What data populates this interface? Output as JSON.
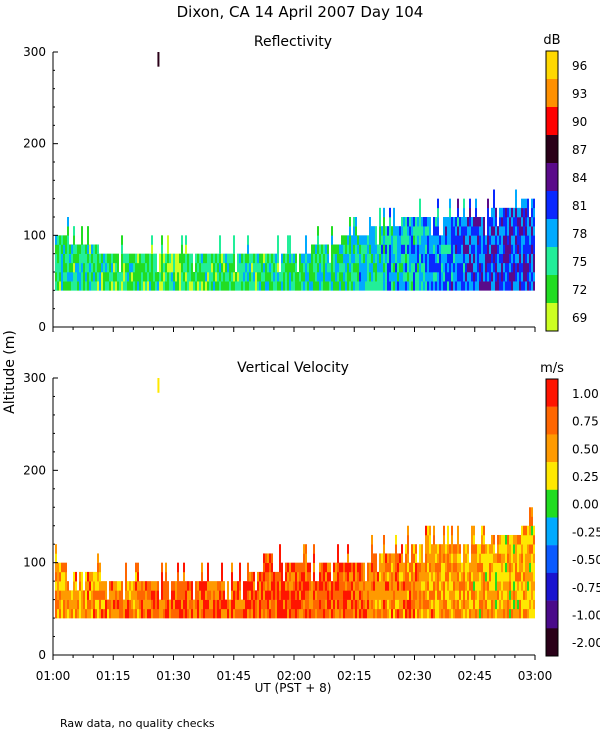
{
  "title": "Dixon, CA 14 April 2007  Day 104",
  "ylabel": "Altitude (m)",
  "xlabel": "UT  (PST + 8)",
  "footnote": "Raw data, no quality checks",
  "chart_data": [
    {
      "type": "heatmap",
      "title": "Reflectivity",
      "colorbar_unit": "dB",
      "x_range": [
        "01:00",
        "03:00"
      ],
      "ylim": [
        0,
        300
      ],
      "yticks": [
        0,
        100,
        200,
        300
      ],
      "colorbar_ticks": [
        "96",
        "93",
        "90",
        "87",
        "84",
        "81",
        "78",
        "75",
        "72",
        "69"
      ],
      "colorbar_colors": [
        "#ffd800",
        "#ff9000",
        "#ff0000",
        "#2a0018",
        "#5a0a8a",
        "#0a28ff",
        "#00aaff",
        "#22ee99",
        "#22dd22",
        "#ccff22"
      ],
      "echo_base_altitude_m": 40,
      "echo_top_profile": [
        {
          "t": "01:00",
          "top_m": 100
        },
        {
          "t": "01:15",
          "top_m": 80
        },
        {
          "t": "01:30",
          "top_m": 80
        },
        {
          "t": "01:45",
          "top_m": 80
        },
        {
          "t": "02:00",
          "top_m": 80
        },
        {
          "t": "02:15",
          "top_m": 100
        },
        {
          "t": "02:30",
          "top_m": 120
        },
        {
          "t": "02:45",
          "top_m": 120
        },
        {
          "t": "03:00",
          "top_m": 140
        }
      ],
      "dominant_values_dB": [
        {
          "t": "01:00",
          "dB": 74
        },
        {
          "t": "01:30",
          "dB": 73
        },
        {
          "t": "02:00",
          "dB": 74
        },
        {
          "t": "02:30",
          "dB": 77
        },
        {
          "t": "02:45",
          "dB": 81
        },
        {
          "t": "03:00",
          "dB": 81
        }
      ]
    },
    {
      "type": "heatmap",
      "title": "Vertical Velocity",
      "colorbar_unit": "m/s",
      "x_range": [
        "01:00",
        "03:00"
      ],
      "ylim": [
        0,
        300
      ],
      "yticks": [
        0,
        100,
        200,
        300
      ],
      "colorbar_ticks": [
        "1.00",
        "0.75",
        "0.50",
        "0.25",
        "0.00",
        "-0.25",
        "-0.50",
        "-0.75",
        "-1.00",
        "-2.00"
      ],
      "colorbar_colors": [
        "#ff1400",
        "#ff6600",
        "#ff9a00",
        "#ffe800",
        "#20dd20",
        "#00aaff",
        "#0a5aff",
        "#1a14d0",
        "#4a0a8a",
        "#2a0018"
      ],
      "echo_base_altitude_m": 40,
      "echo_top_profile": [
        {
          "t": "01:00",
          "top_m": 100
        },
        {
          "t": "01:15",
          "top_m": 80
        },
        {
          "t": "01:30",
          "top_m": 80
        },
        {
          "t": "01:45",
          "top_m": 80
        },
        {
          "t": "02:00",
          "top_m": 100
        },
        {
          "t": "02:15",
          "top_m": 100
        },
        {
          "t": "02:30",
          "top_m": 120
        },
        {
          "t": "02:45",
          "top_m": 120
        },
        {
          "t": "03:00",
          "top_m": 140
        }
      ],
      "dominant_values_ms": [
        {
          "t": "01:00",
          "ms": 0.5
        },
        {
          "t": "01:30",
          "ms": 0.75
        },
        {
          "t": "02:00",
          "ms": 0.85
        },
        {
          "t": "02:30",
          "ms": 0.6
        },
        {
          "t": "02:45",
          "ms": 0.45
        },
        {
          "t": "03:00",
          "ms": 0.4
        }
      ]
    }
  ],
  "xticks": [
    "01:00",
    "01:15",
    "01:30",
    "01:45",
    "02:00",
    "02:15",
    "02:30",
    "02:45",
    "03:00"
  ]
}
